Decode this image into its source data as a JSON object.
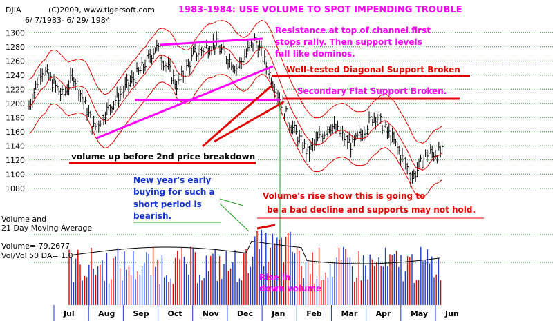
{
  "header": {
    "ticker": "DJIA",
    "copyright": "(C)2009, www.tigersoft.com",
    "date_range": "6/ 7/1983- 6/ 29/ 1984",
    "title": "1983-1984: USE VOLUME TO SPOT IMPENDING TROUBLE"
  },
  "annotations": {
    "resistance": [
      "Resistance at top of channel first",
      "stops rally.  Then support levels",
      "fall like dominos."
    ],
    "diagonal": "Well-tested Diagonal Support Broken",
    "secondary": "Secondary Flat Support Broken.",
    "volume_up": "volume up before 2nd price breakdown",
    "new_year": [
      "New year's early",
      "buying for such a",
      "short period is",
      "bearish."
    ],
    "volume_rise": [
      "Volume's rise show this is going to",
      "be a bad decline and supports may not hold."
    ],
    "rise_down": [
      "Rise in",
      "down volume"
    ]
  },
  "volume_panel": {
    "label1": "Volume and",
    "label2": "21 Day Moving Average",
    "volume_readout": "Volume= 79.2677",
    "ratio_readout": "Vol/Vol 50 DA= 1.0"
  },
  "colors": {
    "price": "#000000",
    "band": "#e00000",
    "magenta": "#ff00ff",
    "up_volume": "#1e3ad0",
    "down_volume": "#e00000",
    "grid": "#2a8a2a"
  },
  "chart_data": {
    "type": "line",
    "title": "1983-1984: USE VOLUME TO SPOT IMPENDING TROUBLE",
    "y_ticks": [
      1080,
      1100,
      1120,
      1140,
      1160,
      1180,
      1200,
      1220,
      1240,
      1260,
      1280,
      1300
    ],
    "ylim": [
      1070,
      1310
    ],
    "months": [
      "Jul",
      "Aug",
      "Sep",
      "Oct",
      "Nov",
      "Dec",
      "Jan",
      "Feb",
      "Mar",
      "Apr",
      "May",
      "Jun"
    ],
    "price_keypoints": [
      {
        "date": "1983-06-07",
        "close": 1190
      },
      {
        "date": "1983-06-20",
        "close": 1250
      },
      {
        "date": "1983-07-10",
        "close": 1210
      },
      {
        "date": "1983-07-20",
        "close": 1240
      },
      {
        "date": "1983-08-08",
        "close": 1165
      },
      {
        "date": "1983-08-25",
        "close": 1200
      },
      {
        "date": "1983-09-20",
        "close": 1245
      },
      {
        "date": "1983-10-05",
        "close": 1280
      },
      {
        "date": "1983-10-25",
        "close": 1225
      },
      {
        "date": "1983-11-10",
        "close": 1270
      },
      {
        "date": "1983-11-29",
        "close": 1285
      },
      {
        "date": "1983-12-20",
        "close": 1250
      },
      {
        "date": "1984-01-06",
        "close": 1290
      },
      {
        "date": "1984-01-24",
        "close": 1225
      },
      {
        "date": "1984-02-06",
        "close": 1175
      },
      {
        "date": "1984-02-24",
        "close": 1130
      },
      {
        "date": "1984-03-16",
        "close": 1170
      },
      {
        "date": "1984-04-06",
        "close": 1140
      },
      {
        "date": "1984-04-27",
        "close": 1185
      },
      {
        "date": "1984-05-15",
        "close": 1145
      },
      {
        "date": "1984-06-01",
        "close": 1095
      },
      {
        "date": "1984-06-15",
        "close": 1130
      },
      {
        "date": "1984-06-29",
        "close": 1130
      }
    ],
    "xlabel": "",
    "ylabel": ""
  }
}
